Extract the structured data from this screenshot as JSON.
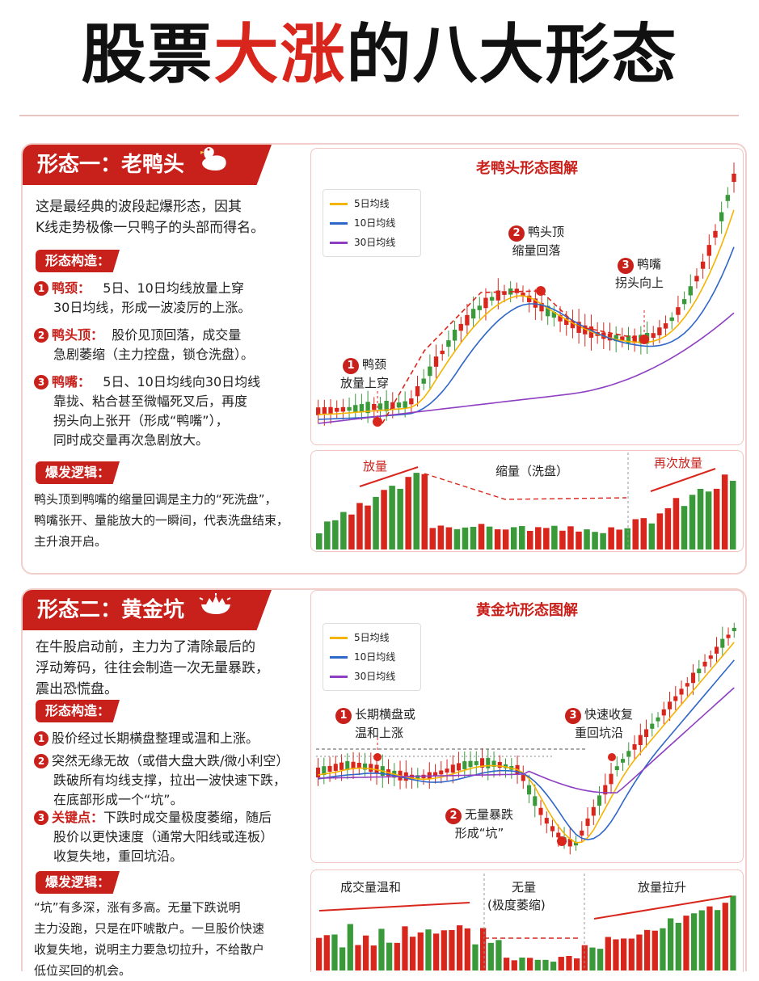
{
  "title": {
    "part1": "股票",
    "part2": "大涨",
    "part3": "的八大形态"
  },
  "colors": {
    "accent": "#c8201b",
    "up": "#d9261c",
    "down": "#3a9a3a",
    "ma5": "#f4b400",
    "ma10": "#2f66c9",
    "ma30": "#8e3ec2"
  },
  "legend": [
    "5日均线",
    "10日均线",
    "30日均线"
  ],
  "pattern1": {
    "tag": "形态一：老鸭头",
    "icon": "duck-icon",
    "intro": [
      "这是最经典的波段起爆形态，因其",
      "K线走势极像一只鸭子的头部而得名。"
    ],
    "structure_label": "形态构造：",
    "items": [
      {
        "num": "1",
        "term": "鸭颈：",
        "lines": [
          "5日、10日均线放量上穿",
          "30日均线，形成一波凌厉的上涨。"
        ]
      },
      {
        "num": "2",
        "term": "鸭头顶：",
        "lines": [
          "股价见顶回落，成交量",
          "急剧萎缩（主力控盘，锁仓洗盘）。"
        ]
      },
      {
        "num": "3",
        "term": "鸭嘴：",
        "lines": [
          "5日、10日均线向30日均线",
          "靠拢、粘合甚至微幅死叉后，再度",
          "拐头向上张开（形成“鸭嘴”），",
          "同时成交量再次急剧放大。"
        ]
      }
    ],
    "logic_label": "爆发逻辑：",
    "logic": [
      "鸭头顶到鸭嘴的缩量回调是主力的“死洗盘”，",
      "鸭嘴张开、量能放大的一瞬间，代表洗盘结束，",
      "主升浪开启。"
    ],
    "chart_title": "老鸭头形态图解",
    "annotations": [
      {
        "num": "1",
        "lines": [
          "鸭颈",
          "放量上穿"
        ]
      },
      {
        "num": "2",
        "lines": [
          "鸭头顶",
          "缩量回落"
        ]
      },
      {
        "num": "3",
        "lines": [
          "鸭嘴",
          "拐头向上"
        ]
      }
    ],
    "volume_labels": [
      "放量",
      "缩量（洗盘）",
      "再次放量"
    ]
  },
  "pattern2": {
    "tag": "形态二：黄金坑",
    "icon": "gold-pit-icon",
    "intro": [
      "在牛股启动前，主力为了清除最后的",
      "浮动筹码，往往会制造一次无量暴跌，",
      "震出恐慌盘。"
    ],
    "structure_label": "形态构造：",
    "items": [
      {
        "num": "1",
        "term": "",
        "lines": [
          "股价经过长期横盘整理或温和上涨。"
        ]
      },
      {
        "num": "2",
        "term": "",
        "lines": [
          "突然无缘无故（或借大盘大跌/微小利空）",
          "跌破所有均线支撑，拉出一波快速下跌，",
          "在底部形成一个“坑”。"
        ]
      },
      {
        "num": "3",
        "term": "关键点：",
        "lines": [
          "下跌时成交量极度萎缩，随后",
          "股价以更快速度（通常大阳线或连板）",
          "收复失地，重回坑沿。"
        ]
      }
    ],
    "logic_label": "爆发逻辑：",
    "logic": [
      "“坑”有多深，涨有多高。无量下跌说明",
      "主力没跑，只是在吓唬散户。一旦股价快速",
      "收复失地，说明主力要急切拉升，不给散户",
      "低位买回的机会。"
    ],
    "chart_title": "黄金坑形态图解",
    "annotations": [
      {
        "num": "1",
        "lines": [
          "长期横盘或",
          "温和上涨"
        ]
      },
      {
        "num": "2",
        "lines": [
          "无量暴跌",
          "形成“坑”"
        ]
      },
      {
        "num": "3",
        "lines": [
          "快速收复",
          "重回坑沿"
        ]
      }
    ],
    "volume_labels": [
      "成交量温和",
      "无量",
      "(极度萎缩)",
      "放量拉升"
    ]
  }
}
